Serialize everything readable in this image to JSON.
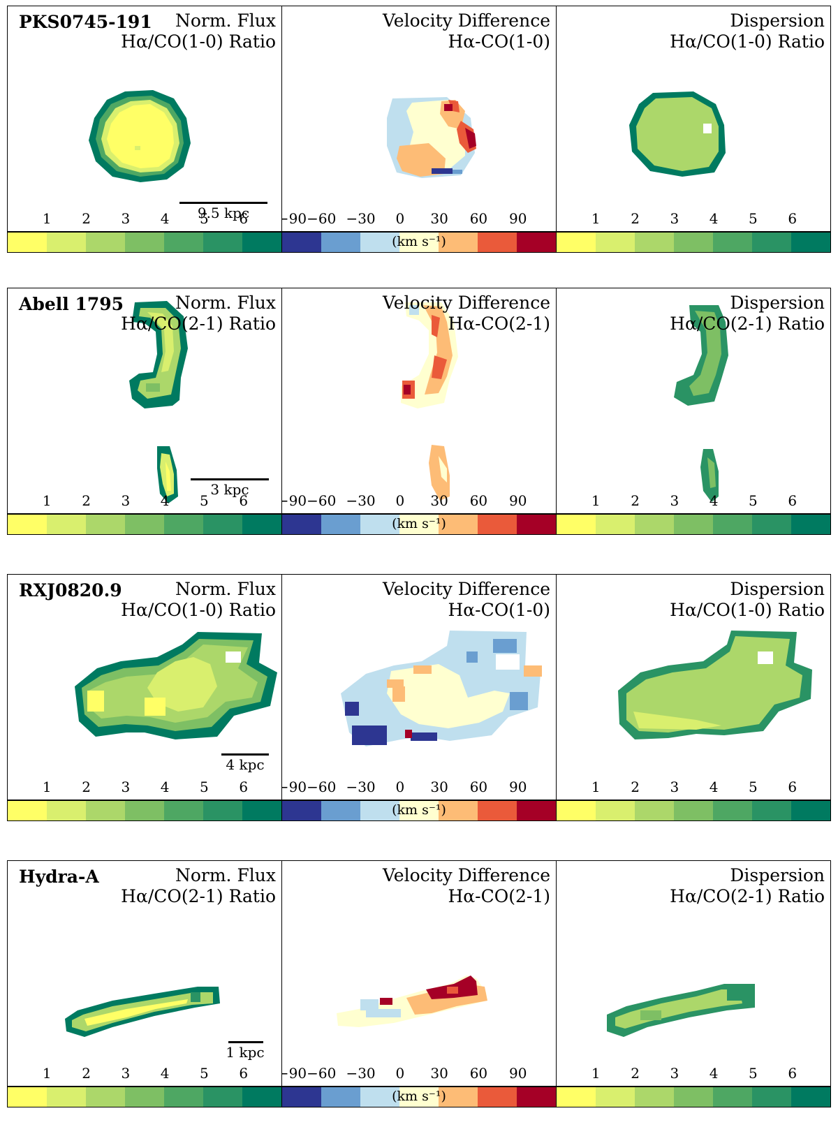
{
  "figure": {
    "panel_titles": {
      "flux_line1": "Norm. Flux",
      "vel_line1": "Velocity Difference",
      "disp_line1": "Dispersion"
    },
    "ratio_ticks": [
      "1",
      "2",
      "3",
      "4",
      "5",
      "6"
    ],
    "vel_ticks": [
      "−90",
      "−60",
      "−30",
      "0",
      "30",
      "60",
      "90"
    ],
    "vel_unit": "(km s⁻¹)",
    "ratio_colors": [
      "#ffff66",
      "#d9ef6e",
      "#acd76a",
      "#7ebf64",
      "#4ea763",
      "#2a9364",
      "#007a60"
    ],
    "vel_colors": [
      "#2d3691",
      "#6a9ed0",
      "#bfdfee",
      "#ffffd0",
      "#fdbc76",
      "#ea5a3a",
      "#a50026"
    ]
  },
  "rows": [
    {
      "galaxy": "PKS0745-191",
      "flux_line2": "Hα/CO(1-0) Ratio",
      "vel_line2": "Hα-CO(1-0)",
      "disp_line2": "Hα/CO(1-0) Ratio",
      "scale_label": "9.5 kpc"
    },
    {
      "galaxy": "Abell 1795",
      "flux_line2": "Hα/CO(2-1) Ratio",
      "vel_line2": "Hα-CO(2-1)",
      "disp_line2": "Hα/CO(2-1) Ratio",
      "scale_label": "3 kpc"
    },
    {
      "galaxy": "RXJ0820.9",
      "flux_line2": "Hα/CO(1-0) Ratio",
      "vel_line2": "Hα-CO(1-0)",
      "disp_line2": "Hα/CO(1-0) Ratio",
      "scale_label": "4 kpc"
    },
    {
      "galaxy": "Hydra-A",
      "flux_line2": "Hα/CO(2-1) Ratio",
      "vel_line2": "Hα-CO(2-1)",
      "disp_line2": "Hα/CO(2-1) Ratio",
      "scale_label": "1 kpc"
    }
  ]
}
